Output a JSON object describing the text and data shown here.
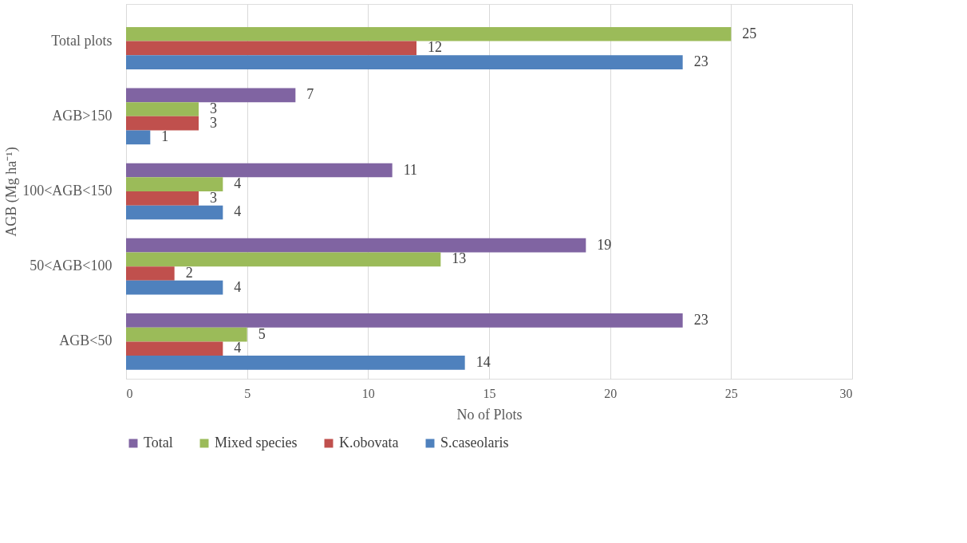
{
  "chart_data": {
    "type": "bar",
    "orientation": "horizontal",
    "xlabel": "No of Plots",
    "ylabel": "AGB (Mg ha⁻¹)",
    "categories": [
      "Total plots",
      "AGB>150",
      "100<AGB<150",
      "50<AGB<100",
      "AGB<50"
    ],
    "series": [
      {
        "name": "Total",
        "color": "#8064a2",
        "values": [
          null,
          7,
          11,
          19,
          23
        ]
      },
      {
        "name": "Mixed species",
        "color": "#9bbb59",
        "values": [
          25,
          3,
          4,
          13,
          5
        ]
      },
      {
        "name": "K.obovata",
        "color": "#c0504d",
        "values": [
          12,
          3,
          3,
          2,
          4
        ]
      },
      {
        "name": "S.caseolaris",
        "color": "#4f81bd",
        "values": [
          23,
          1,
          4,
          4,
          14
        ]
      }
    ],
    "xlim": [
      0,
      30
    ],
    "xticks": [
      0,
      5,
      10,
      15,
      20,
      25,
      30
    ],
    "grid": "x",
    "legend": "bottom",
    "data_labels": true
  }
}
